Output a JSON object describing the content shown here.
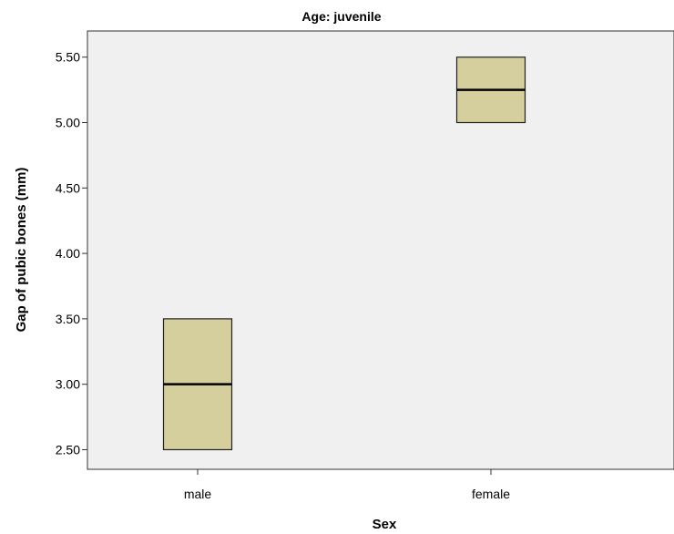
{
  "chart_data": {
    "type": "boxplot",
    "title": "Age: juvenile",
    "xlabel": "Sex",
    "ylabel": "Gap of pubic bones (mm)",
    "categories": [
      "male",
      "female"
    ],
    "boxes": [
      {
        "category": "male",
        "min": 2.5,
        "q1": 2.5,
        "median": 3.0,
        "q3": 3.5,
        "max": 3.5
      },
      {
        "category": "female",
        "min": 5.0,
        "q1": 5.0,
        "median": 5.25,
        "q3": 5.5,
        "max": 5.5
      }
    ],
    "ylim": [
      2.35,
      5.7
    ],
    "yticks": [
      "2.50",
      "3.00",
      "3.50",
      "4.00",
      "4.50",
      "5.00",
      "5.50"
    ],
    "grid": false,
    "colors": {
      "plot_background": "#f0f0f0",
      "box_fill": "#d5cf9e",
      "box_stroke": "#222222",
      "median": "#000000"
    }
  }
}
